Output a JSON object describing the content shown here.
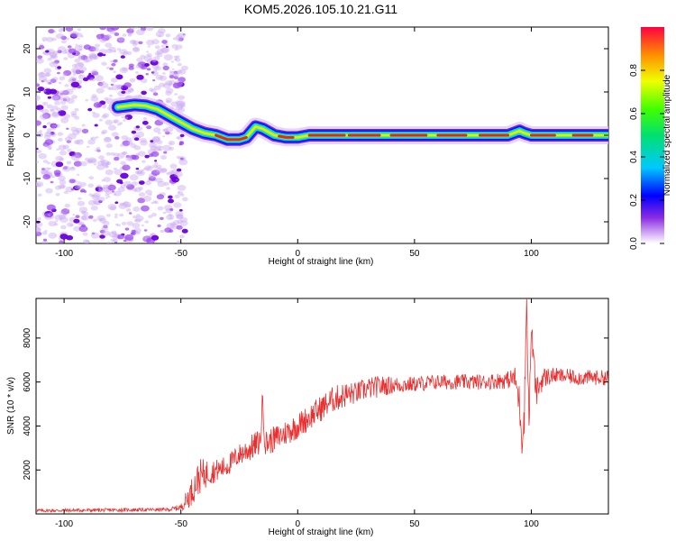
{
  "title": "KOM5.2026.105.10.21.G11",
  "chart_data": [
    {
      "type": "heatmap",
      "xlabel": "Height of straight line (km)",
      "ylabel": "Frequency (Hz)",
      "xlim": [
        -112,
        133
      ],
      "ylim": [
        -25,
        25
      ],
      "xticks": [
        -100,
        -50,
        0,
        50,
        100
      ],
      "yticks": [
        20,
        10,
        0,
        -10,
        -20
      ],
      "ridge": {
        "x": [
          -77,
          -70,
          -65,
          -60,
          -55,
          -50,
          -45,
          -40,
          -35,
          -30,
          -25,
          -22,
          -18,
          -15,
          -10,
          -5,
          0,
          5,
          10,
          20,
          40,
          60,
          80,
          90,
          95,
          97,
          100,
          110,
          120,
          133
        ],
        "y": [
          6.5,
          7,
          6.8,
          6,
          4.5,
          3,
          1.5,
          0.5,
          0,
          -1,
          -1,
          -0.5,
          2,
          1.5,
          0,
          -0.5,
          -0.5,
          0,
          0,
          0,
          0,
          0,
          0,
          0,
          1,
          0.5,
          0,
          0,
          0,
          0
        ]
      },
      "noise_region": [
        -112,
        -48
      ],
      "colorbar": {
        "label": "Normalized spectral amplitude",
        "range": [
          0,
          1
        ],
        "ticks": [
          "0.0",
          "0.2",
          "0.4",
          "0.6",
          "0.8"
        ]
      }
    },
    {
      "type": "line",
      "xlabel": "Height of straight line (km)",
      "ylabel": "SNR (10 * v/v)",
      "xlim": [
        -112,
        133
      ],
      "ylim": [
        0,
        9800
      ],
      "xticks": [
        -100,
        -50,
        0,
        50,
        100
      ],
      "yticks": [
        2000,
        4000,
        6000,
        8000
      ],
      "series": [
        {
          "name": "SNR",
          "color": "#e83030",
          "x": [
            -112,
            -55,
            -50,
            -46,
            -42,
            -38,
            -34,
            -30,
            -25,
            -20,
            -16,
            -15,
            -14,
            -10,
            -5,
            0,
            5,
            10,
            15,
            20,
            25,
            30,
            35,
            40,
            50,
            60,
            70,
            80,
            90,
            93,
            95,
            96,
            97,
            98,
            99,
            100,
            102,
            105,
            110,
            120,
            133
          ],
          "y": [
            150,
            200,
            300,
            900,
            1700,
            1900,
            2000,
            2200,
            2700,
            3000,
            3300,
            5300,
            3200,
            3400,
            3700,
            4000,
            4400,
            4800,
            5200,
            5400,
            5500,
            5700,
            5800,
            5850,
            5900,
            6000,
            6000,
            6000,
            6100,
            6200,
            5000,
            3500,
            4500,
            9800,
            4000,
            8500,
            5500,
            6200,
            6300,
            6200,
            6200
          ],
          "noise": [
            80,
            80,
            150,
            600,
            800,
            600,
            500,
            500,
            500,
            600,
            600,
            500,
            600,
            600,
            600,
            600,
            600,
            600,
            600,
            600,
            500,
            500,
            500,
            400,
            350,
            350,
            350,
            350,
            400,
            500,
            900,
            900,
            900,
            300,
            900,
            500,
            700,
            500,
            350,
            350,
            350
          ]
        }
      ]
    }
  ]
}
